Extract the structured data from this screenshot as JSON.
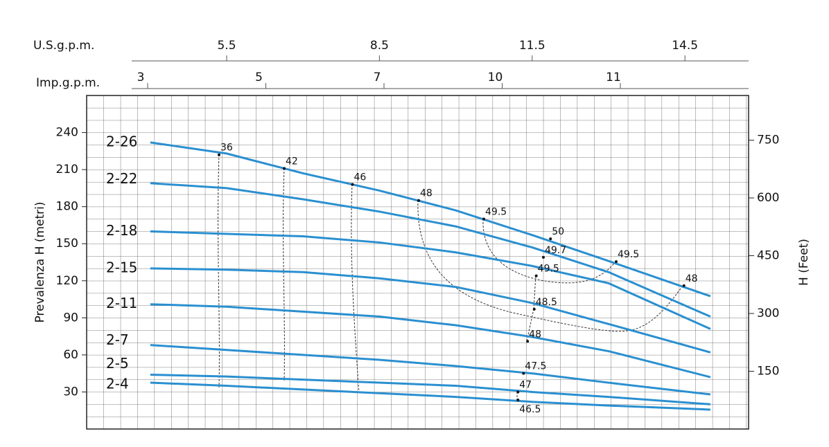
{
  "chart_data": {
    "type": "line",
    "x_label": "U.S.g.p.m.",
    "x2_label": "Imp.g.p.m.",
    "y_label": "Prevalenza H (metri)",
    "y2_label": "H (Feet)",
    "xlim": [
      2.75,
      15.75
    ],
    "xticks": [
      5.5,
      8.5,
      11.5,
      14.5
    ],
    "imp_categories": [
      "3",
      "5",
      "7",
      "10",
      "11"
    ],
    "ylim": [
      0,
      270
    ],
    "yticks": [
      30,
      60,
      90,
      120,
      150,
      180,
      210,
      240
    ],
    "y2lim": [
      0,
      866
    ],
    "y2ticks": [
      150,
      300,
      450,
      600,
      750
    ],
    "grid": true,
    "color": "#2a8fd0",
    "x": [
      4,
      5.5,
      7,
      8.5,
      10,
      11.5,
      13,
      15
    ],
    "series": [
      {
        "name": "2-26",
        "values": [
          232,
          223,
          207,
          193,
          177,
          157,
          136,
          107.5
        ]
      },
      {
        "name": "2-22",
        "values": [
          199,
          195,
          186,
          176,
          164,
          147,
          127,
          91
        ]
      },
      {
        "name": "2-18",
        "values": [
          160,
          158,
          156,
          151,
          143,
          132,
          118,
          81
        ]
      },
      {
        "name": "2-15",
        "values": [
          130,
          129,
          127,
          122,
          115,
          102,
          85,
          62
        ]
      },
      {
        "name": "2-11",
        "values": [
          101,
          99,
          95,
          91,
          84,
          74.5,
          63,
          42
        ]
      },
      {
        "name": "2-7",
        "values": [
          68,
          64,
          60,
          56,
          51,
          45,
          37.5,
          28
        ]
      },
      {
        "name": "2-5",
        "values": [
          44,
          42.5,
          40,
          37.5,
          35,
          30,
          26,
          20
        ]
      },
      {
        "name": "2-4",
        "values": [
          37.5,
          35,
          32,
          29,
          26,
          22,
          19,
          15.7
        ]
      }
    ],
    "annotations": [
      {
        "text": "36",
        "x": 5.35,
        "y": 222
      },
      {
        "text": "42",
        "x": 6.63,
        "y": 211
      },
      {
        "text": "46",
        "x": 7.97,
        "y": 198
      },
      {
        "text": "48",
        "x": 9.27,
        "y": 185
      },
      {
        "text": "49.5",
        "x": 10.55,
        "y": 170
      },
      {
        "text": "50",
        "x": 11.86,
        "y": 154
      },
      {
        "text": "49.7",
        "x": 11.72,
        "y": 139
      },
      {
        "text": "49.5",
        "x": 11.58,
        "y": 124
      },
      {
        "text": "49.5",
        "x": 13.15,
        "y": 135.5
      },
      {
        "text": "48",
        "x": 14.48,
        "y": 116
      },
      {
        "text": "48.5",
        "x": 11.54,
        "y": 97
      },
      {
        "text": "48",
        "x": 11.41,
        "y": 71
      },
      {
        "text": "47.5",
        "x": 11.33,
        "y": 45
      },
      {
        "text": "47",
        "x": 11.22,
        "y": 30
      },
      {
        "text": "46.5",
        "x": 11.22,
        "y": 23.5
      }
    ]
  }
}
